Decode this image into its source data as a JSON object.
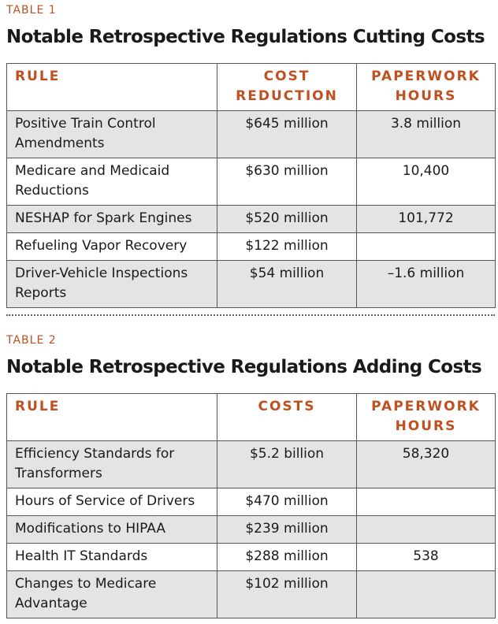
{
  "tables": [
    {
      "label": "TABLE 1",
      "title": "Notable Retrospective Regulations Cutting Costs",
      "columns": [
        "RULE",
        "COST REDUCTION",
        "PAPERWORK HOURS"
      ],
      "rows": [
        [
          "Positive Train Control Amendments",
          "$645 million",
          "3.8 million"
        ],
        [
          "Medicare and Medicaid Reductions",
          "$630 million",
          "10,400"
        ],
        [
          "NESHAP for Spark Engines",
          "$520 million",
          "101,772"
        ],
        [
          "Refueling Vapor Recovery",
          "$122 million",
          null
        ],
        [
          "Driver-Vehicle Inspections Reports",
          "$54 million",
          "–1.6 million"
        ]
      ]
    },
    {
      "label": "TABLE 2",
      "title": "Notable Retrospective Regulations Adding Costs",
      "columns": [
        "RULE",
        "COSTS",
        "PAPERWORK HOURS"
      ],
      "rows": [
        [
          "Efficiency Standards for Transformers",
          "$5.2 billion",
          "58,320"
        ],
        [
          "Hours of Service of Drivers",
          "$470 million",
          null
        ],
        [
          "Modifications to HIPAA",
          "$239 million",
          null
        ],
        [
          "Health IT Standards",
          "$288 million",
          "538"
        ],
        [
          "Changes to Medicare Advantage",
          "$102 million",
          null
        ]
      ]
    }
  ]
}
